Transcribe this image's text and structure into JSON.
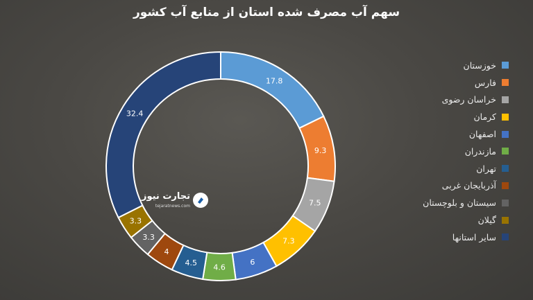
{
  "chart_data": {
    "type": "pie",
    "variant": "donut",
    "title": "سهم آب مصرف شده استان از منابع آب کشور",
    "categories": [
      "خوزستان",
      "فارس",
      "خراسان رضوی",
      "کرمان",
      "اصفهان",
      "مازندران",
      "تهران",
      "آذربایجان غربی",
      "سیستان و بلوچستان",
      "گیلان",
      "سایر استانها"
    ],
    "values": [
      17.8,
      9.3,
      7.5,
      7.3,
      6,
      4.6,
      4.5,
      4,
      3.3,
      3.3,
      32.4
    ],
    "labels": [
      "17.8",
      "9.3",
      "7.5",
      "7.3",
      "6",
      "4.6",
      "4.5",
      "4",
      "3.3",
      "3.3",
      "32.4"
    ],
    "colors": [
      "#5b9bd5",
      "#ed7d31",
      "#a5a5a5",
      "#ffc000",
      "#4472c4",
      "#70ad47",
      "#255e91",
      "#9e480e",
      "#636363",
      "#997300",
      "#264478"
    ],
    "legend_position": "right"
  },
  "watermark": {
    "text": "تجارت نیوز",
    "url": "tejaratnews.com"
  }
}
